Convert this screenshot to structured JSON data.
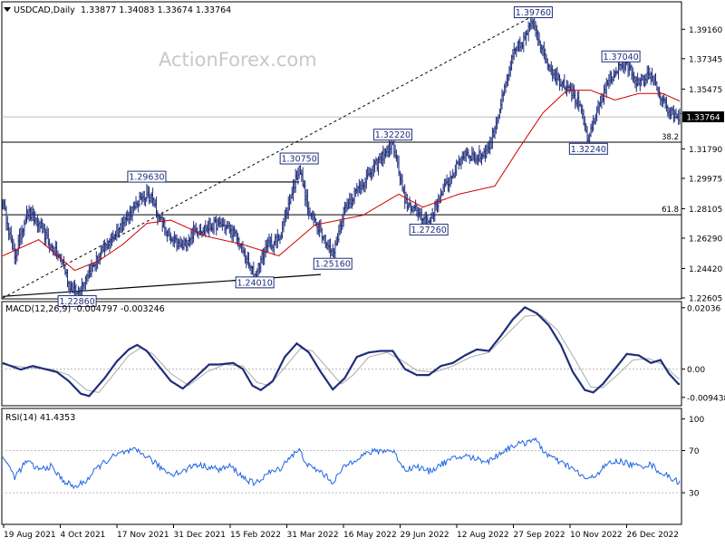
{
  "header": {
    "symbol": "USDCAD,Daily",
    "ohlc": "1.33877 1.34083 1.33674 1.33764",
    "watermark": "ActionForex.com"
  },
  "macd_header": "MACD(12,26,9) -0.004797 -0.003246",
  "rsi_header": "RSI(14) 41.4353",
  "colors": {
    "price": "#1f2e7a",
    "sma": "#cc0000",
    "macd": "#1f2e7a",
    "signal": "#aaaaaa",
    "rsi": "#1e64e6",
    "pointer": "#1f2e7a",
    "levels": "#000000",
    "grid": "#bbbbbb"
  },
  "chart_data": [
    {
      "type": "ohlc",
      "name": "price",
      "ylim": [
        1.2255,
        1.4085
      ],
      "yticks": [
        "1.39160",
        "1.37345",
        "1.35475",
        "1.33764",
        "1.31790",
        "1.29975",
        "1.28105",
        "1.26290",
        "1.24420",
        "1.22605"
      ],
      "current_price": "1.33764",
      "x_labels": [
        "19 Aug 2021",
        "4 Oct 2021",
        "17 Nov 2021",
        "31 Dec 2021",
        "15 Feb 2022",
        "31 Mar 2022",
        "16 May 2022",
        "29 Jun 2022",
        "12 Aug 2022",
        "27 Sep 2022",
        "10 Nov 2022",
        "26 Dec 2022"
      ],
      "anchors": [
        [
          0,
          1.285
        ],
        [
          10,
          1.251
        ],
        [
          20,
          1.279
        ],
        [
          30,
          1.272
        ],
        [
          40,
          1.258
        ],
        [
          50,
          1.248
        ],
        [
          55,
          1.235
        ],
        [
          62,
          1.2286
        ],
        [
          70,
          1.24
        ],
        [
          80,
          1.251
        ],
        [
          90,
          1.262
        ],
        [
          100,
          1.272
        ],
        [
          110,
          1.282
        ],
        [
          115,
          1.288
        ],
        [
          120,
          1.29
        ],
        [
          125,
          1.287
        ],
        [
          130,
          1.276
        ],
        [
          140,
          1.262
        ],
        [
          150,
          1.257
        ],
        [
          160,
          1.268
        ],
        [
          170,
          1.269
        ],
        [
          180,
          1.272
        ],
        [
          190,
          1.268
        ],
        [
          196,
          1.262
        ],
        [
          205,
          1.246
        ],
        [
          210,
          1.2401
        ],
        [
          220,
          1.258
        ],
        [
          230,
          1.262
        ],
        [
          240,
          1.288
        ],
        [
          247,
          1.307
        ],
        [
          255,
          1.279
        ],
        [
          265,
          1.268
        ],
        [
          275,
          1.2516
        ],
        [
          285,
          1.282
        ],
        [
          295,
          1.292
        ],
        [
          305,
          1.302
        ],
        [
          315,
          1.312
        ],
        [
          325,
          1.3222
        ],
        [
          335,
          1.285
        ],
        [
          345,
          1.28
        ],
        [
          355,
          1.2726
        ],
        [
          365,
          1.29
        ],
        [
          375,
          1.302
        ],
        [
          385,
          1.316
        ],
        [
          395,
          1.312
        ],
        [
          405,
          1.318
        ],
        [
          415,
          1.345
        ],
        [
          425,
          1.375
        ],
        [
          435,
          1.386
        ],
        [
          442,
          1.3976
        ],
        [
          452,
          1.373
        ],
        [
          462,
          1.361
        ],
        [
          472,
          1.356
        ],
        [
          480,
          1.345
        ],
        [
          488,
          1.3224
        ],
        [
          495,
          1.342
        ],
        [
          505,
          1.36
        ],
        [
          515,
          1.37
        ],
        [
          522,
          1.368
        ],
        [
          530,
          1.358
        ],
        [
          540,
          1.364
        ],
        [
          547,
          1.35
        ],
        [
          555,
          1.341
        ],
        [
          562,
          1.3376
        ]
      ],
      "sma_anchors": [
        [
          0,
          1.252
        ],
        [
          30,
          1.262
        ],
        [
          60,
          1.243
        ],
        [
          80,
          1.249
        ],
        [
          100,
          1.259
        ],
        [
          120,
          1.272
        ],
        [
          140,
          1.274
        ],
        [
          170,
          1.264
        ],
        [
          200,
          1.259
        ],
        [
          230,
          1.252
        ],
        [
          260,
          1.271
        ],
        [
          280,
          1.274
        ],
        [
          300,
          1.277
        ],
        [
          330,
          1.29
        ],
        [
          350,
          1.282
        ],
        [
          380,
          1.29
        ],
        [
          410,
          1.295
        ],
        [
          430,
          1.318
        ],
        [
          450,
          1.34
        ],
        [
          470,
          1.354
        ],
        [
          490,
          1.354
        ],
        [
          510,
          1.348
        ],
        [
          530,
          1.352
        ],
        [
          550,
          1.352
        ],
        [
          565,
          1.347
        ]
      ],
      "trend_channel_upper": [
        [
          0,
          1.2975
        ],
        [
          247,
          1.2975
        ]
      ],
      "trend_channel_lower": [
        [
          0,
          1.227
        ],
        [
          265,
          1.2405
        ]
      ],
      "diagonal_trendline": [
        [
          0,
          1.226
        ],
        [
          445,
          1.401
        ]
      ],
      "level_lines": [
        {
          "label": "38.2",
          "value": 1.322
        },
        {
          "label": "61.8",
          "value": 1.2773
        },
        {
          "label": "",
          "value": 1.3376
        }
      ],
      "annotations": [
        {
          "text": "1.22860",
          "i": 62,
          "value": 1.2286,
          "pos": "below"
        },
        {
          "text": "1.29630",
          "i": 120,
          "value": 1.2963,
          "pos": "above"
        },
        {
          "text": "1.24010",
          "i": 210,
          "value": 1.2401,
          "pos": "below"
        },
        {
          "text": "1.30750",
          "i": 247,
          "value": 1.3075,
          "pos": "above"
        },
        {
          "text": "1.25160",
          "i": 275,
          "value": 1.2516,
          "pos": "below"
        },
        {
          "text": "1.32220",
          "i": 325,
          "value": 1.3222,
          "pos": "above"
        },
        {
          "text": "1.27260",
          "i": 355,
          "value": 1.2726,
          "pos": "below"
        },
        {
          "text": "1.39760",
          "i": 442,
          "value": 1.3976,
          "pos": "above"
        },
        {
          "text": "1.32240",
          "i": 488,
          "value": 1.3224,
          "pos": "below"
        },
        {
          "text": "1.37040",
          "i": 515,
          "value": 1.3704,
          "pos": "above"
        }
      ]
    },
    {
      "type": "line",
      "name": "MACD(12,26,9)",
      "ylim": [
        -0.0122,
        0.0224
      ],
      "yticks": [
        "0.02036",
        "0.00",
        "-0.009438"
      ],
      "series": [
        {
          "name": "MACD",
          "anchors": [
            [
              0,
              0.002
            ],
            [
              15,
              -0.0002
            ],
            [
              25,
              0.001
            ],
            [
              35,
              0.0
            ],
            [
              45,
              -0.001
            ],
            [
              55,
              -0.004
            ],
            [
              65,
              -0.0082
            ],
            [
              72,
              -0.009
            ],
            [
              85,
              -0.003
            ],
            [
              95,
              0.0025
            ],
            [
              105,
              0.0065
            ],
            [
              112,
              0.008
            ],
            [
              120,
              0.006
            ],
            [
              130,
              0.001
            ],
            [
              140,
              -0.004
            ],
            [
              150,
              -0.0065
            ],
            [
              160,
              -0.003
            ],
            [
              172,
              0.0015
            ],
            [
              180,
              0.0015
            ],
            [
              192,
              0.002
            ],
            [
              200,
              0.0
            ],
            [
              208,
              -0.0055
            ],
            [
              215,
              -0.007
            ],
            [
              225,
              -0.004
            ],
            [
              235,
              0.004
            ],
            [
              245,
              0.0085
            ],
            [
              255,
              0.0055
            ],
            [
              265,
              -0.001
            ],
            [
              275,
              -0.0068
            ],
            [
              285,
              -0.003
            ],
            [
              295,
              0.004
            ],
            [
              305,
              0.0055
            ],
            [
              315,
              0.006
            ],
            [
              325,
              0.006
            ],
            [
              335,
              0.0
            ],
            [
              345,
              -0.002
            ],
            [
              355,
              -0.002
            ],
            [
              365,
              0.001
            ],
            [
              375,
              0.002
            ],
            [
              385,
              0.0045
            ],
            [
              395,
              0.0065
            ],
            [
              405,
              0.006
            ],
            [
              415,
              0.011
            ],
            [
              425,
              0.0165
            ],
            [
              435,
              0.0205
            ],
            [
              445,
              0.0185
            ],
            [
              455,
              0.0145
            ],
            [
              465,
              0.008
            ],
            [
              475,
              -0.001
            ],
            [
              485,
              -0.007
            ],
            [
              492,
              -0.0078
            ],
            [
              500,
              -0.005
            ],
            [
              510,
              0.0
            ],
            [
              520,
              0.005
            ],
            [
              530,
              0.0045
            ],
            [
              540,
              0.002
            ],
            [
              548,
              0.003
            ],
            [
              555,
              -0.0015
            ],
            [
              563,
              -0.005
            ]
          ]
        },
        {
          "name": "Signal",
          "anchors": [
            [
              0,
              0.0015
            ],
            [
              20,
              0.0005
            ],
            [
              40,
              0.0
            ],
            [
              55,
              -0.002
            ],
            [
              70,
              -0.007
            ],
            [
              80,
              -0.0078
            ],
            [
              90,
              -0.003
            ],
            [
              105,
              0.0045
            ],
            [
              115,
              0.007
            ],
            [
              125,
              0.005
            ],
            [
              140,
              -0.0015
            ],
            [
              155,
              -0.0055
            ],
            [
              170,
              -0.001
            ],
            [
              185,
              0.0015
            ],
            [
              200,
              0.001
            ],
            [
              212,
              -0.0045
            ],
            [
              222,
              -0.0055
            ],
            [
              235,
              0.0005
            ],
            [
              248,
              0.0068
            ],
            [
              258,
              0.006
            ],
            [
              270,
              0.0005
            ],
            [
              282,
              -0.005
            ],
            [
              292,
              -0.002
            ],
            [
              305,
              0.004
            ],
            [
              320,
              0.0055
            ],
            [
              332,
              0.003
            ],
            [
              345,
              -0.0005
            ],
            [
              360,
              -0.001
            ],
            [
              375,
              0.001
            ],
            [
              390,
              0.004
            ],
            [
              405,
              0.0055
            ],
            [
              420,
              0.0115
            ],
            [
              435,
              0.0175
            ],
            [
              448,
              0.018
            ],
            [
              462,
              0.013
            ],
            [
              477,
              0.003
            ],
            [
              490,
              -0.006
            ],
            [
              500,
              -0.0062
            ],
            [
              512,
              -0.002
            ],
            [
              525,
              0.003
            ],
            [
              538,
              0.0035
            ],
            [
              550,
              0.0015
            ],
            [
              563,
              -0.0032
            ]
          ]
        }
      ]
    },
    {
      "type": "line",
      "name": "RSI(14)",
      "ylim": [
        0,
        110
      ],
      "yticks": [
        "100",
        "70",
        "30"
      ],
      "reference_lines": [
        70,
        30
      ],
      "series": [
        {
          "name": "RSI",
          "anchors": [
            [
              0,
              65
            ],
            [
              10,
              45
            ],
            [
              20,
              60
            ],
            [
              30,
              52
            ],
            [
              40,
              55
            ],
            [
              50,
              42
            ],
            [
              60,
              35
            ],
            [
              70,
              42
            ],
            [
              80,
              55
            ],
            [
              90,
              63
            ],
            [
              100,
              68
            ],
            [
              110,
              70
            ],
            [
              120,
              65
            ],
            [
              130,
              55
            ],
            [
              140,
              48
            ],
            [
              150,
              50
            ],
            [
              160,
              57
            ],
            [
              170,
              55
            ],
            [
              180,
              52
            ],
            [
              190,
              55
            ],
            [
              200,
              45
            ],
            [
              210,
              38
            ],
            [
              220,
              48
            ],
            [
              230,
              52
            ],
            [
              240,
              65
            ],
            [
              247,
              70
            ],
            [
              255,
              55
            ],
            [
              265,
              50
            ],
            [
              275,
              40
            ],
            [
              285,
              55
            ],
            [
              295,
              63
            ],
            [
              305,
              68
            ],
            [
              315,
              70
            ],
            [
              325,
              70
            ],
            [
              335,
              52
            ],
            [
              345,
              55
            ],
            [
              355,
              50
            ],
            [
              365,
              57
            ],
            [
              375,
              62
            ],
            [
              385,
              65
            ],
            [
              395,
              62
            ],
            [
              405,
              60
            ],
            [
              415,
              68
            ],
            [
              425,
              75
            ],
            [
              435,
              77
            ],
            [
              442,
              82
            ],
            [
              452,
              68
            ],
            [
              462,
              60
            ],
            [
              472,
              55
            ],
            [
              480,
              48
            ],
            [
              488,
              42
            ],
            [
              495,
              48
            ],
            [
              505,
              58
            ],
            [
              515,
              60
            ],
            [
              522,
              57
            ],
            [
              530,
              55
            ],
            [
              540,
              57
            ],
            [
              547,
              50
            ],
            [
              555,
              45
            ],
            [
              562,
              41
            ]
          ]
        }
      ]
    }
  ]
}
